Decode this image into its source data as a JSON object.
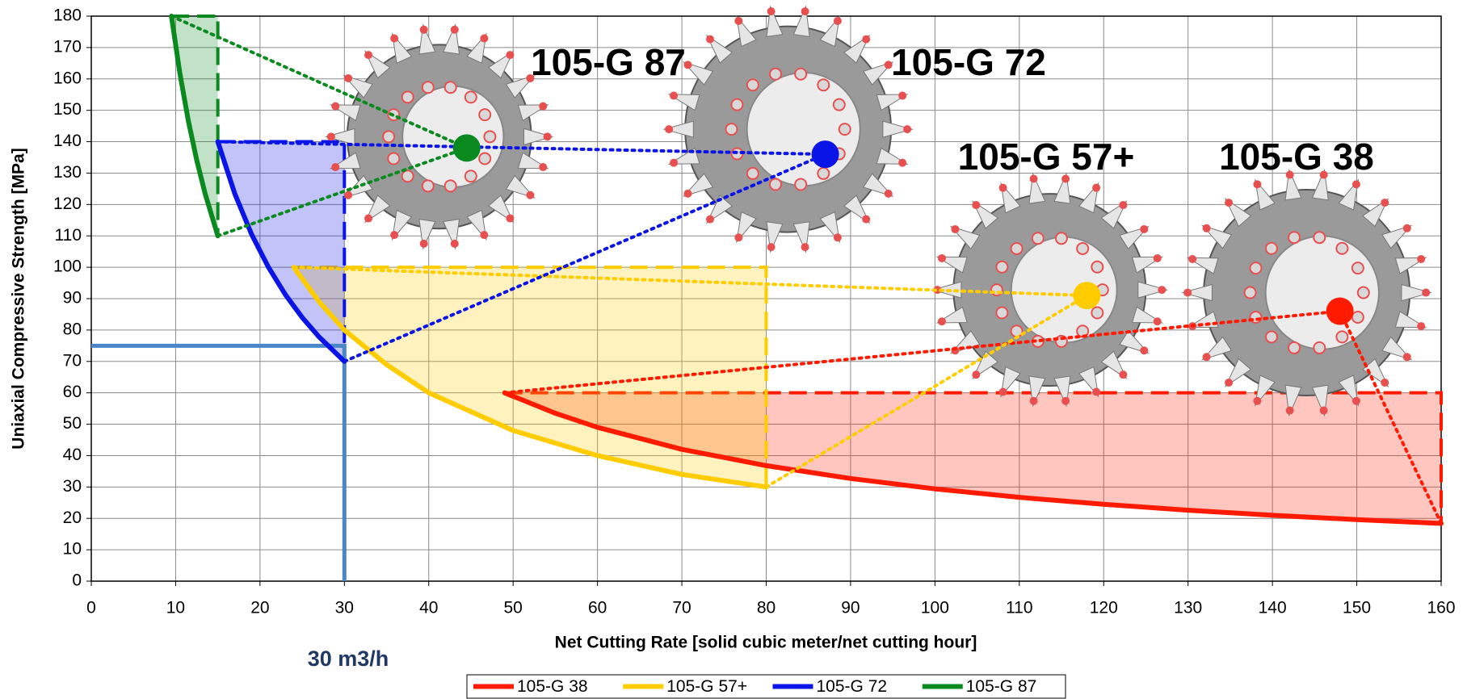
{
  "chart_data": {
    "type": "line",
    "x_label": "Net Cutting Rate [solid cubic meter/net cutting hour]",
    "y_label": "Uniaxial Compressive Strength [MPa]",
    "xlim": [
      0,
      160
    ],
    "ylim": [
      0,
      180
    ],
    "xticks": [
      0,
      10,
      20,
      30,
      40,
      50,
      60,
      70,
      80,
      90,
      100,
      110,
      120,
      130,
      140,
      150,
      160
    ],
    "yticks": [
      0,
      10,
      20,
      30,
      40,
      50,
      60,
      70,
      80,
      90,
      100,
      110,
      120,
      130,
      140,
      150,
      160,
      170,
      180
    ],
    "grid": true,
    "series": [
      {
        "name": "105-G 38",
        "color": "#ff1a00",
        "x": [
          49,
          55,
          60,
          70,
          80,
          90,
          100,
          110,
          120,
          130,
          140,
          150,
          160
        ],
        "values": [
          60,
          53.5,
          49,
          42,
          36.8,
          32.7,
          29.4,
          26.7,
          24.5,
          22.6,
          21,
          19.6,
          18.4
        ],
        "wheel_x": 148,
        "wheel_y": 86
      },
      {
        "name": "105-G 57+",
        "color": "#ffcc00",
        "x": [
          24,
          27,
          30,
          35,
          40,
          50,
          60,
          70,
          80
        ],
        "values": [
          100,
          89,
          80,
          69,
          60,
          48,
          40,
          34,
          30
        ],
        "wheel_x": 118,
        "wheel_y": 91
      },
      {
        "name": "105-G 72",
        "color": "#0a14e6",
        "x": [
          15,
          17,
          19,
          21,
          23,
          25,
          27,
          30
        ],
        "values": [
          140,
          123.5,
          110.5,
          100,
          91.3,
          84,
          77.8,
          70
        ],
        "wheel_x": 87,
        "wheel_y": 136
      },
      {
        "name": "105-G 87",
        "color": "#0a8a1e",
        "x": [
          9.5,
          10.5,
          11.5,
          12.5,
          13.5,
          15
        ],
        "values": [
          180,
          161.8,
          146.7,
          134.1,
          123.4,
          110
        ],
        "wheel_x": 44.5,
        "wheel_y": 138
      }
    ],
    "reference": {
      "x": 30,
      "y": 75,
      "color": "#4a86c8",
      "label": "30 m3/h"
    }
  }
}
